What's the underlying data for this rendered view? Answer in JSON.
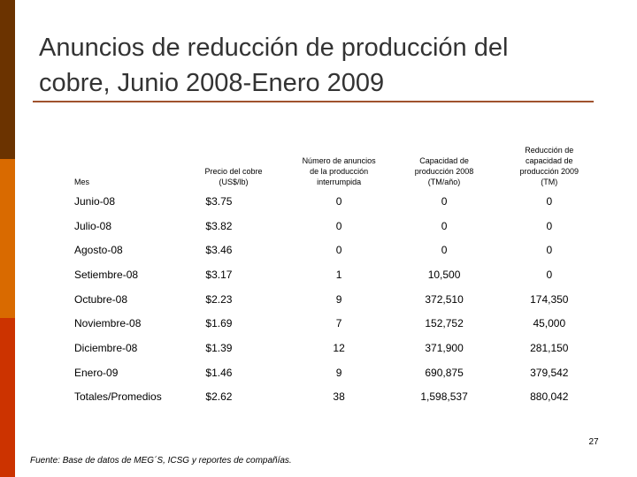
{
  "title": {
    "line1": "Anuncios de reducción de producción del",
    "line2": "cobre, Junio 2008-Enero 2009"
  },
  "table": {
    "headers": [
      [
        "Mes"
      ],
      [
        "Precio del cobre",
        "(US$/lb)"
      ],
      [
        "Número de anuncios",
        "de la producción",
        "interrumpida"
      ],
      [
        "Capacidad de",
        "producción 2008",
        "(TM/año)"
      ],
      [
        "Reducción de",
        "capacidad de",
        "producción 2009",
        "(TM)"
      ]
    ],
    "rows": [
      [
        "Junio-08",
        "$3.75",
        "0",
        "0",
        "0"
      ],
      [
        "Julio-08",
        "$3.82",
        "0",
        "0",
        "0"
      ],
      [
        "Agosto-08",
        "$3.46",
        "0",
        "0",
        "0"
      ],
      [
        "Setiembre-08",
        "$3.17",
        "1",
        "10,500",
        "0"
      ],
      [
        "Octubre-08",
        "$2.23",
        "9",
        "372,510",
        "174,350"
      ],
      [
        "Noviembre-08",
        "$1.69",
        "7",
        "152,752",
        "45,000"
      ],
      [
        "Diciembre-08",
        "$1.39",
        "12",
        "371,900",
        "281,150"
      ],
      [
        "Enero-09",
        "$1.46",
        "9",
        "690,875",
        "379,542"
      ],
      [
        "Totales/Promedios",
        "$2.62",
        "38",
        "1,598,537",
        "880,042"
      ]
    ]
  },
  "page_number": "27",
  "source": "Fuente: Base de datos de MEG´S, ICSG y reportes de compañías.",
  "colors": {
    "side_top": "#6b3300",
    "side_middle": "#d96a00",
    "side_bottom": "#cc3300",
    "title_rule": "#a0522d",
    "title_text": "#333333"
  }
}
